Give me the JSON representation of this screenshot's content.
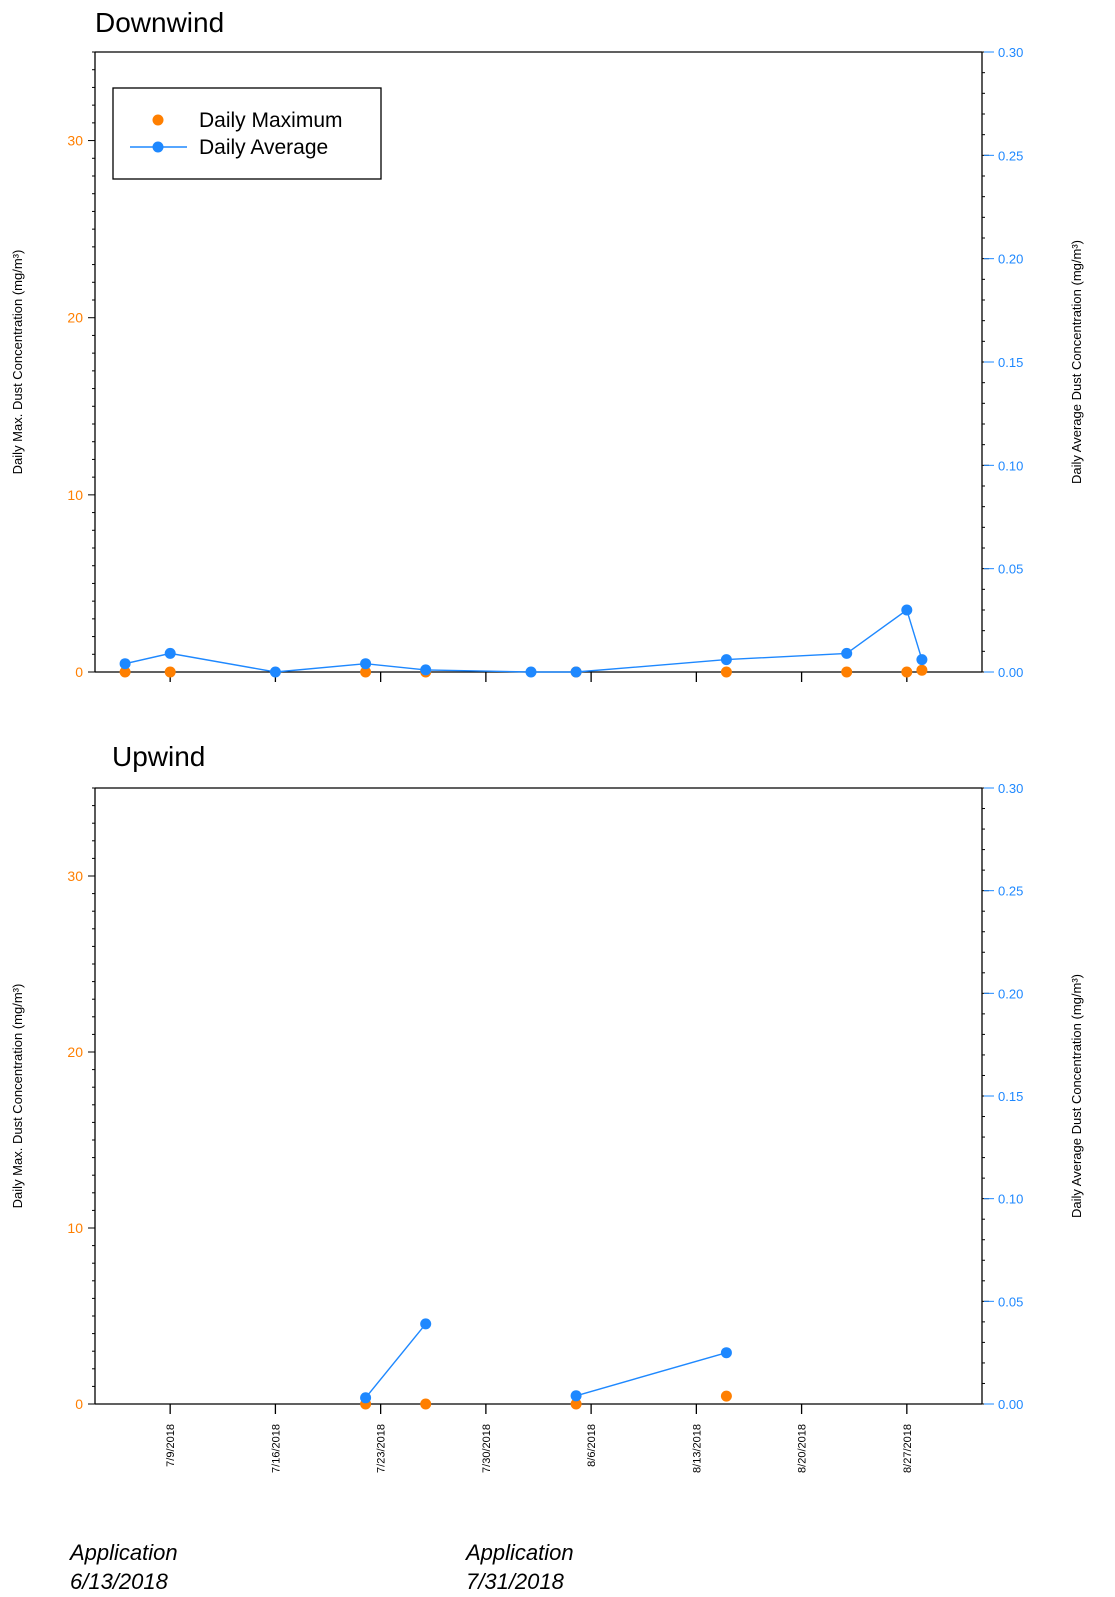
{
  "colors": {
    "max": "#ff7f00",
    "avg": "#1e88ff",
    "axis": "#000000"
  },
  "left_ticks": [
    "0",
    "10",
    "20",
    "30"
  ],
  "right_ticks": [
    "0.00",
    "0.05",
    "0.10",
    "0.15",
    "0.20",
    "0.25",
    "0.30"
  ],
  "y_left_label": "Daily Max. Dust Concentration (mg/m³)",
  "y_right_label": "Daily Average Dust Concentration (mg/m³)",
  "x_tick_labels": [
    "7/9/2018",
    "7/16/2018",
    "7/23/2018",
    "7/30/2018",
    "8/6/2018",
    "8/13/2018",
    "8/20/2018",
    "8/27/2018"
  ],
  "legend": {
    "max_label": "Daily Maximum",
    "avg_label": "Daily Average"
  },
  "annotations": [
    {
      "line1": "Application",
      "line2": "6/13/2018"
    },
    {
      "line1": "Application",
      "line2": "7/31/2018"
    }
  ],
  "chart_data": [
    {
      "type": "scatter+line",
      "title": "Downwind",
      "ylabel_left": "Daily Max. Dust Concentration (mg/m³)",
      "ylabel_right": "Daily Average Dust Concentration (mg/m³)",
      "ylim_left": [
        0,
        35
      ],
      "ylim_right": [
        0,
        0.3
      ],
      "xlim": [
        "2018-07-04",
        "2018-09-01"
      ],
      "grid": false,
      "legend_position": "top-left",
      "series": [
        {
          "name": "Daily Maximum",
          "axis": "left",
          "marker": "circle",
          "points": [
            [
              "2018-07-06",
              0.0
            ],
            [
              "2018-07-09",
              0.0
            ],
            [
              "2018-07-22",
              0.0
            ],
            [
              "2018-07-26",
              0.0
            ],
            [
              "2018-08-05",
              0.0
            ],
            [
              "2018-08-15",
              0.0
            ],
            [
              "2018-08-23",
              0.0
            ],
            [
              "2018-08-27",
              0.0
            ],
            [
              "2018-08-28",
              0.1
            ]
          ]
        },
        {
          "name": "Daily Average",
          "axis": "right",
          "marker": "circle",
          "line": true,
          "points": [
            [
              "2018-07-06",
              0.004
            ],
            [
              "2018-07-09",
              0.009
            ],
            [
              "2018-07-16",
              0.0
            ],
            [
              "2018-07-22",
              0.004
            ],
            [
              "2018-07-26",
              0.001
            ],
            [
              "2018-08-02",
              0.0
            ],
            [
              "2018-08-05",
              0.0
            ],
            [
              "2018-08-15",
              0.006
            ],
            [
              "2018-08-23",
              0.009
            ],
            [
              "2018-08-27",
              0.03
            ],
            [
              "2018-08-28",
              0.006
            ]
          ]
        }
      ]
    },
    {
      "type": "scatter+line",
      "title": "Upwind",
      "ylabel_left": "Daily Max. Dust Concentration (mg/m³)",
      "ylabel_right": "Daily Average Dust Concentration (mg/m³)",
      "ylim_left": [
        0,
        35
      ],
      "ylim_right": [
        0,
        0.3
      ],
      "xlim": [
        "2018-07-04",
        "2018-09-01"
      ],
      "grid": false,
      "series": [
        {
          "name": "Daily Maximum",
          "axis": "left",
          "marker": "circle",
          "points": [
            [
              "2018-07-22",
              0.0
            ],
            [
              "2018-07-26",
              0.0
            ],
            [
              "2018-08-05",
              0.0
            ],
            [
              "2018-08-15",
              0.45
            ]
          ]
        },
        {
          "name": "Daily Average",
          "axis": "right",
          "marker": "circle",
          "line": true,
          "segments": [
            [
              [
                "2018-07-22",
                0.003
              ],
              [
                "2018-07-26",
                0.039
              ]
            ],
            [
              [
                "2018-08-05",
                0.004
              ],
              [
                "2018-08-15",
                0.025
              ]
            ]
          ]
        }
      ]
    }
  ]
}
